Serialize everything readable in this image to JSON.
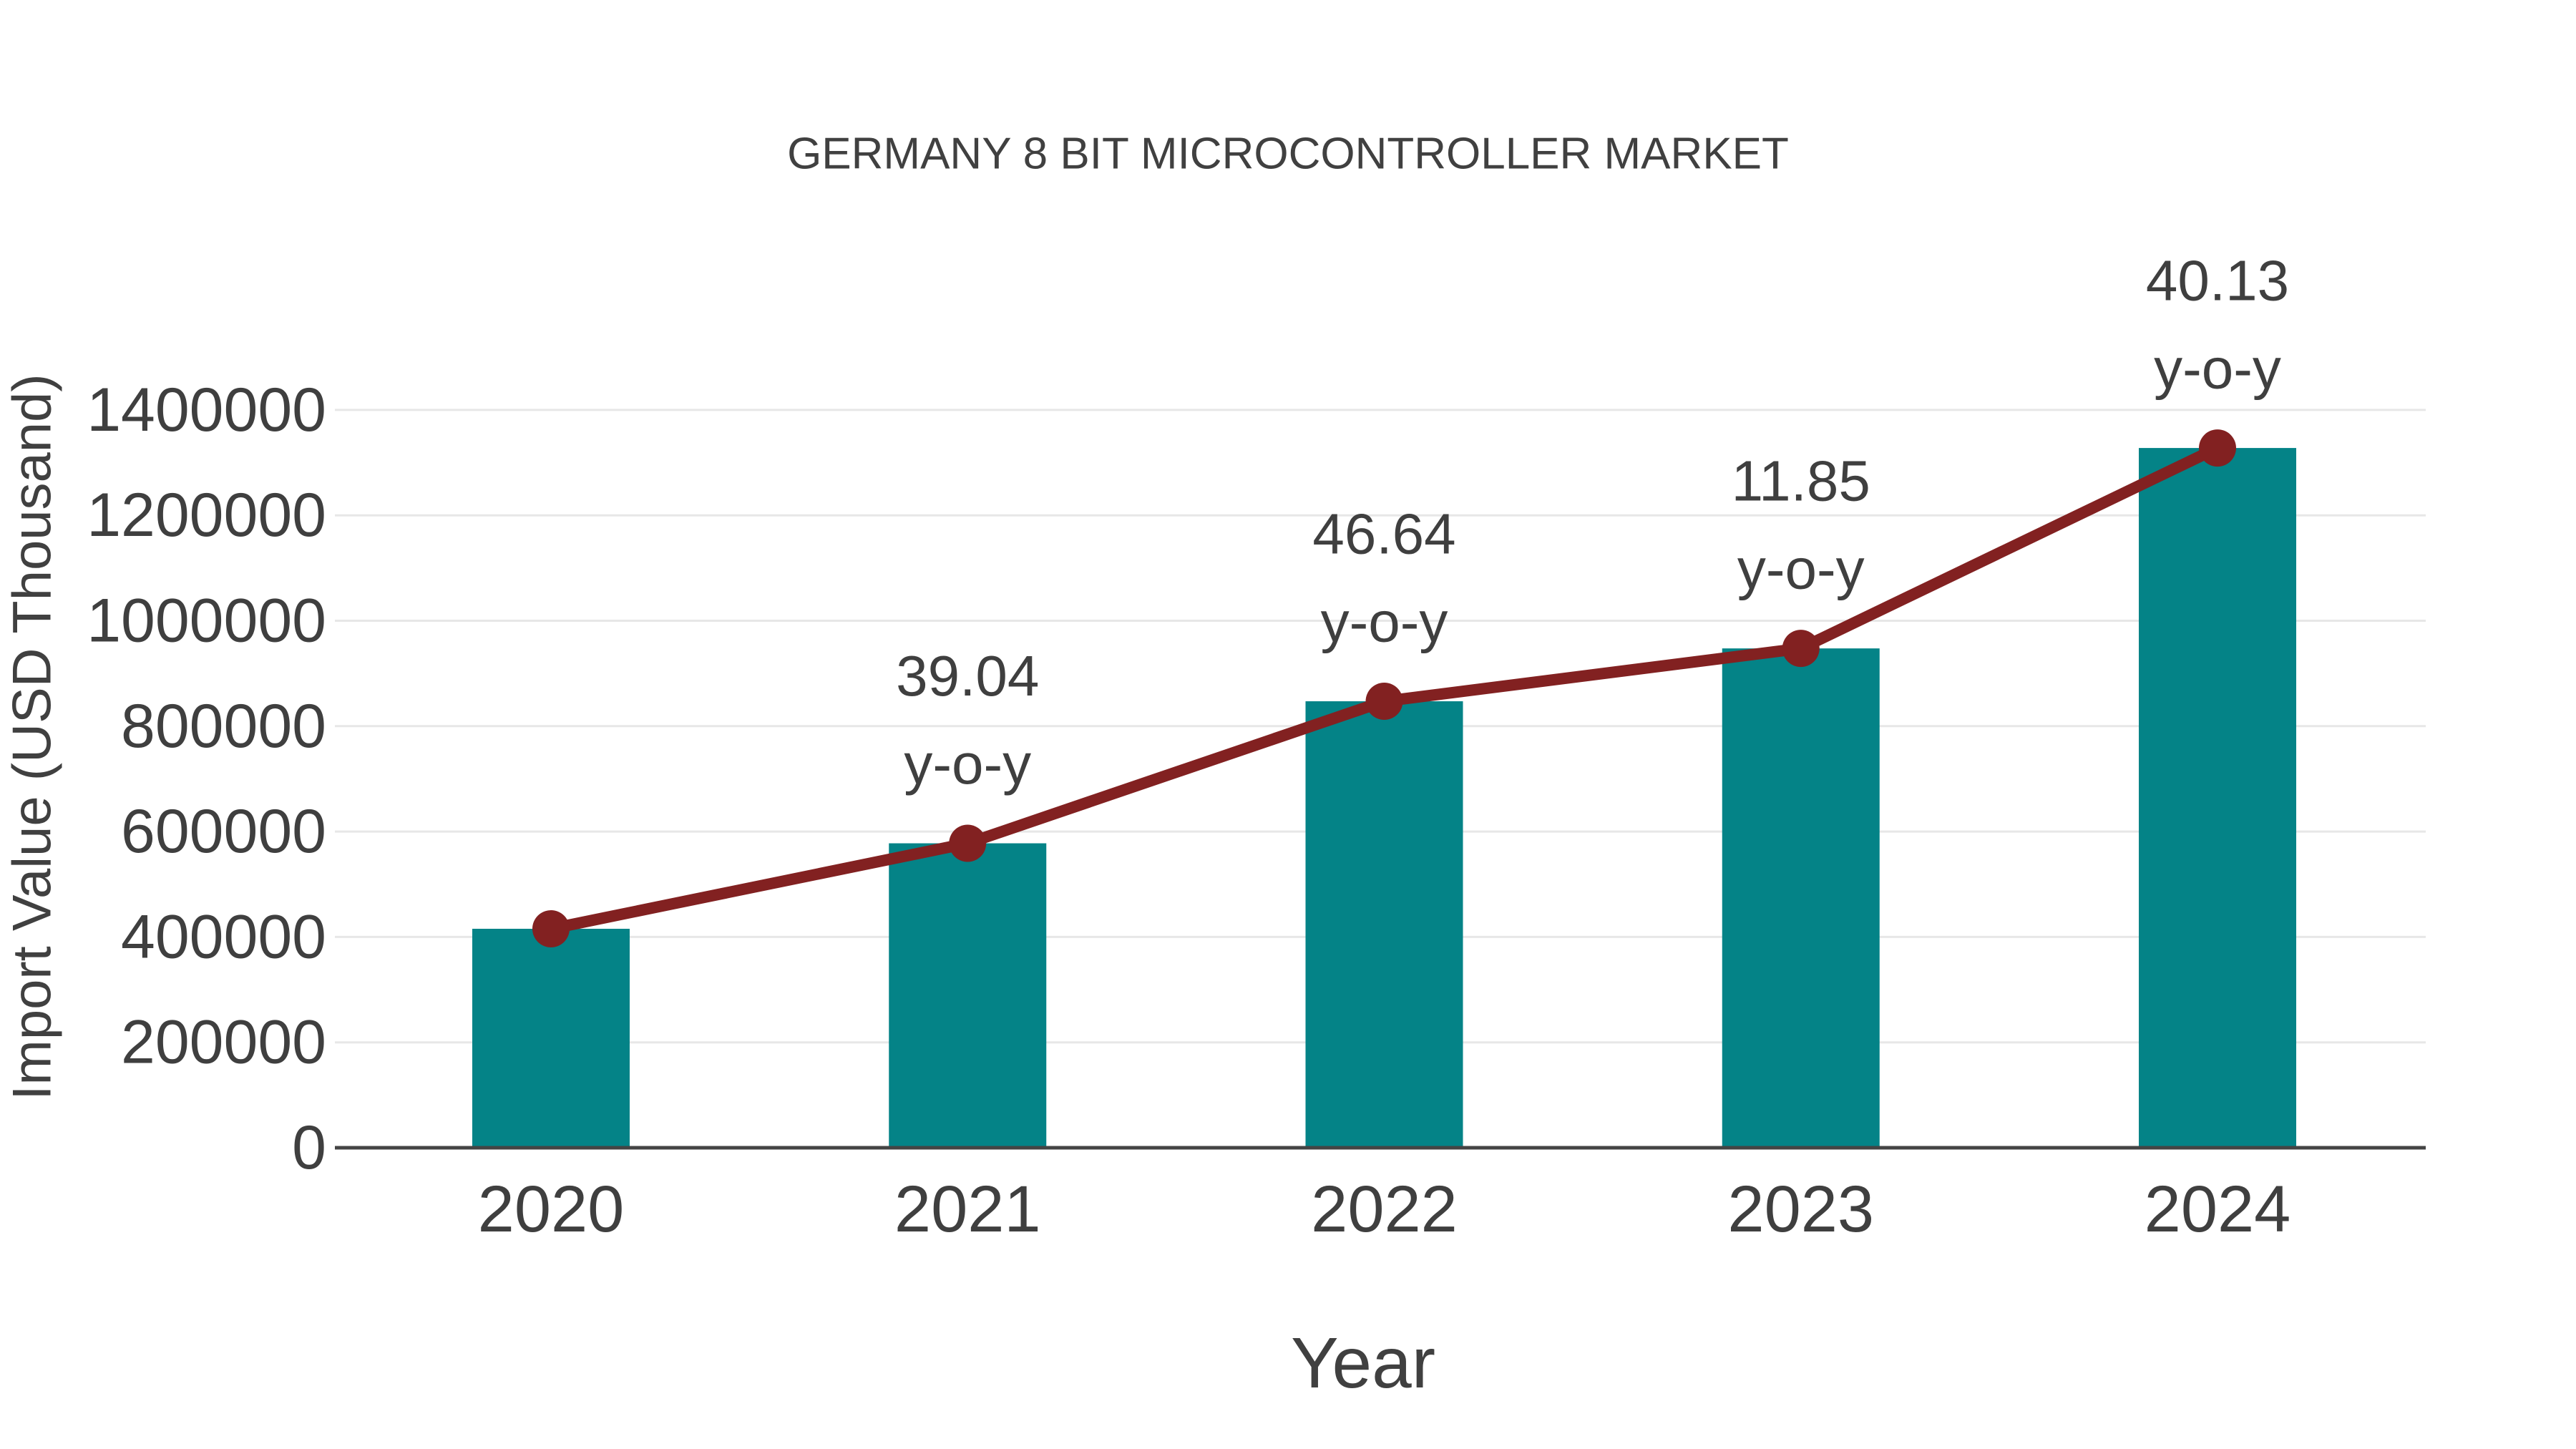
{
  "page": {
    "background": "#ffffff"
  },
  "chart_data": {
    "type": "bar",
    "title": "GERMANY 8 BIT MICROCONTROLLER MARKET",
    "xlabel": "Year",
    "ylabel": "Import Value (USD Thousand)",
    "categories": [
      "2020",
      "2021",
      "2022",
      "2023",
      "2024"
    ],
    "series": [
      {
        "name": "Import Value (USD Thousand)",
        "type": "bar",
        "values": [
          415500,
          577700,
          847200,
          947500,
          1327800
        ]
      },
      {
        "name": "y-o-y trend line",
        "type": "line",
        "note": "line with round markers passing through each bar top",
        "values": [
          415500,
          577700,
          847200,
          947500,
          1327800
        ]
      }
    ],
    "yoy_percent": [
      null,
      39.04,
      46.64,
      11.85,
      40.13
    ],
    "annotations": [
      {
        "category": "2021",
        "value_label": "39.04",
        "suffix_label": "y-o-y"
      },
      {
        "category": "2022",
        "value_label": "46.64",
        "suffix_label": "y-o-y"
      },
      {
        "category": "2023",
        "value_label": "11.85",
        "suffix_label": "y-o-y"
      },
      {
        "category": "2024",
        "value_label": "40.13",
        "suffix_label": "y-o-y"
      }
    ],
    "ylim": [
      0,
      1400000
    ],
    "yticks": [
      0,
      200000,
      400000,
      600000,
      800000,
      1000000,
      1200000,
      1400000
    ],
    "ytick_labels": [
      "0",
      "200000",
      "400000",
      "600000",
      "800000",
      "1000000",
      "1200000",
      "1400000"
    ],
    "grid": true,
    "legend": "none",
    "colors": {
      "bar": "#048387",
      "line": "#822121",
      "marker": "#822121",
      "text": "#3f3f3f",
      "title": "#404040",
      "grid": "#e7e7e7",
      "axis": "#444444"
    }
  }
}
